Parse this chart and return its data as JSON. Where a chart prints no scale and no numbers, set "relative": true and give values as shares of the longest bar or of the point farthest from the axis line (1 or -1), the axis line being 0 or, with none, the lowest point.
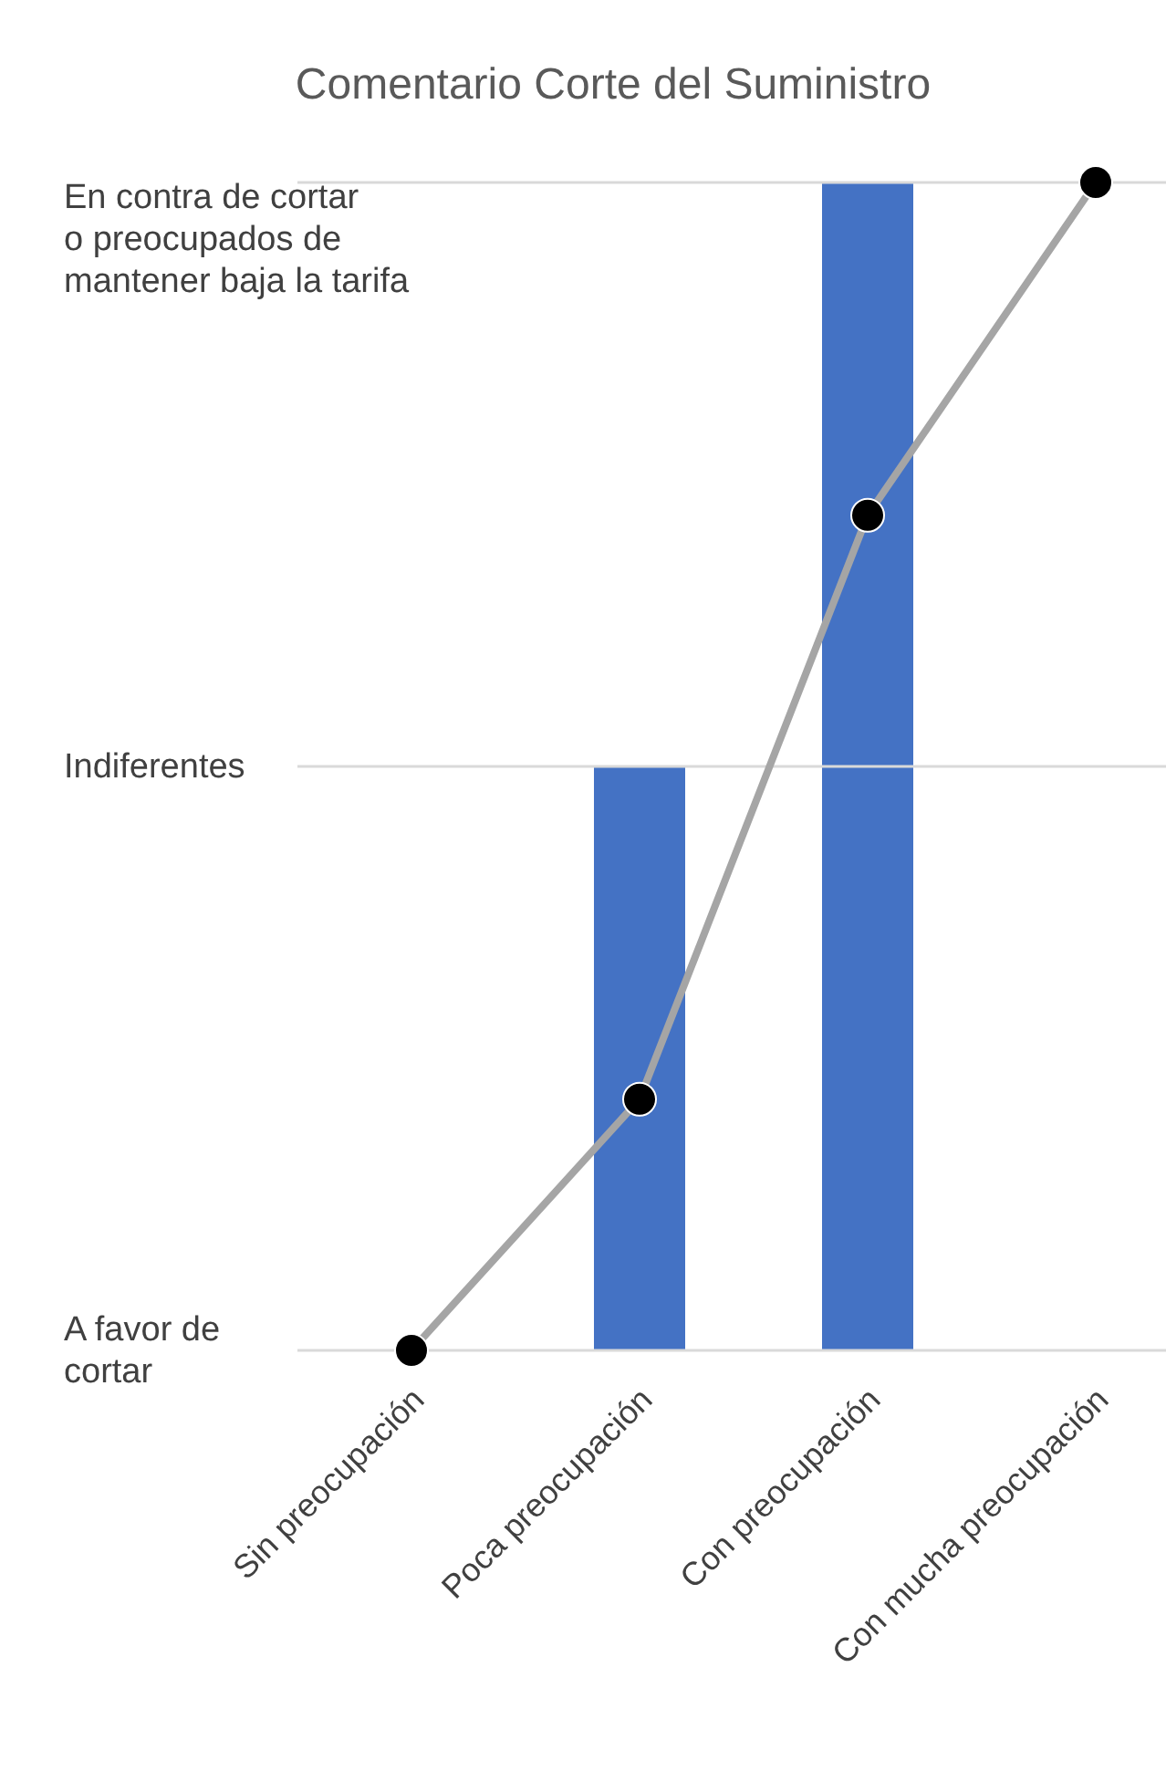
{
  "chart_data": {
    "type": "bar",
    "title": "Comentario Corte del Suministro",
    "relative": true,
    "categories": [
      "Sin preocupación",
      "Poca preocupación",
      "Con preocupación",
      "Con mucha preocupación"
    ],
    "series": [
      {
        "color": "#4472c4",
        "values": [
          0,
          0.5,
          1,
          0
        ]
      },
      {
        "type": "line",
        "color": "#a5a5a5",
        "values": [
          0,
          0.215,
          0.715,
          1
        ],
        "marker": "circle"
      }
    ],
    "ref_lines": [
      {
        "axis": "y",
        "value": 1,
        "label": "En contra de cortar\no preocupados de\nmantener baja la tarifa",
        "color": "#d9d9d9"
      },
      {
        "axis": "y",
        "value": 0.5,
        "label": "Indiferentes",
        "color": "#d9d9d9"
      }
    ],
    "annotations": [
      "A favor de\ncortar"
    ]
  }
}
